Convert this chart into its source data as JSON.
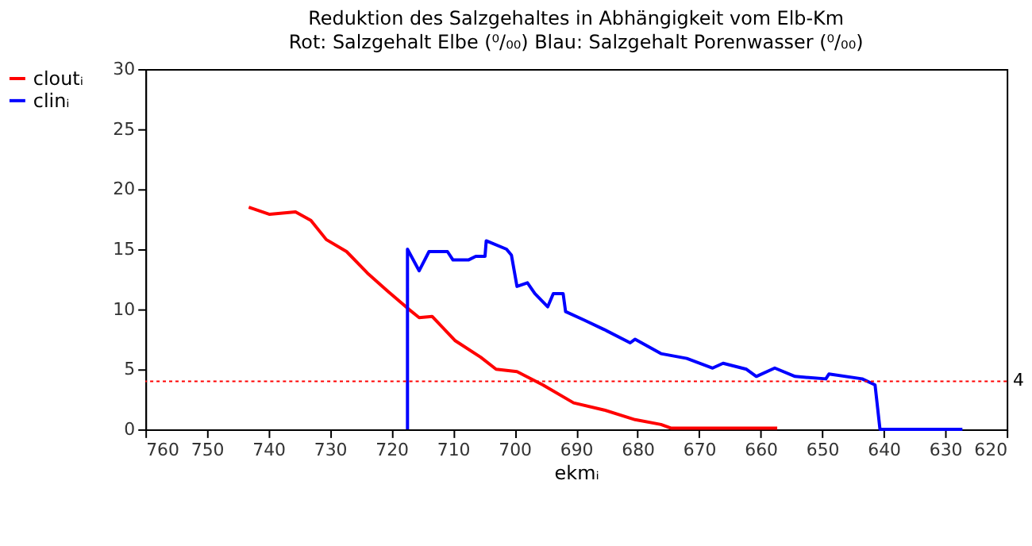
{
  "chart_data": {
    "type": "line",
    "title": "Reduktion des Salzgehaltes in Abhängigkeit vom Elb-Km",
    "subtitle": "Rot:  Salzgehalt Elbe (⁰/₀₀)    Blau: Salzgehalt Porenwasser (⁰/₀₀)",
    "xlabel": "ekmᵢ",
    "xlim": [
      760,
      620
    ],
    "xticks": [
      760,
      750,
      740,
      730,
      720,
      710,
      700,
      690,
      680,
      670,
      660,
      650,
      640,
      630,
      620
    ],
    "ylim": [
      0,
      30
    ],
    "yticks": [
      0,
      5,
      10,
      15,
      20,
      25,
      30
    ],
    "grid": false,
    "legend": "left",
    "line_style": "solid",
    "marker": "none",
    "ref_lines": [
      {
        "axis": "y",
        "value": 4,
        "label": "4",
        "color": "#ff0000",
        "line_style": "dotted"
      }
    ],
    "series": [
      {
        "name": "cloutᵢ",
        "color": "#ff0000",
        "x": [
          743.2,
          739.8,
          735.6,
          733.1,
          730.6,
          727.3,
          723.9,
          720.6,
          717.2,
          715.5,
          713.4,
          709.7,
          705.5,
          703,
          699.6,
          695.4,
          690.4,
          685.4,
          680.4,
          676.2,
          674.6,
          657.3
        ],
        "values": [
          18.5,
          17.9,
          18.1,
          17.4,
          15.8,
          14.8,
          13.0,
          11.5,
          10.0,
          9.3,
          9.4,
          7.4,
          6.0,
          5.0,
          4.8,
          3.7,
          2.2,
          1.6,
          0.8,
          0.4,
          0.1,
          0.1
        ]
      },
      {
        "name": "clinᵢ",
        "color": "#0000ff",
        "x": [
          717.4,
          717.4,
          715.5,
          713.9,
          710.9,
          710.0,
          707.5,
          706.3,
          704.8,
          704.6,
          701.3,
          700.5,
          699.6,
          697.9,
          696.7,
          694.6,
          693.7,
          692.1,
          691.7,
          688.7,
          685.4,
          681.2,
          680.4,
          676.2,
          672,
          667.8,
          666.1,
          662.3,
          660.7,
          657.7,
          654.4,
          649.4,
          648.9,
          643.5,
          641.4,
          640.6,
          627.2
        ],
        "values": [
          0,
          15.0,
          13.2,
          14.8,
          14.8,
          14.1,
          14.1,
          14.4,
          14.4,
          15.7,
          15.0,
          14.5,
          11.9,
          12.2,
          11.3,
          10.2,
          11.3,
          11.3,
          9.8,
          9.1,
          8.3,
          7.2,
          7.5,
          6.3,
          5.9,
          5.1,
          5.5,
          5.0,
          4.4,
          5.1,
          4.4,
          4.2,
          4.6,
          4.2,
          3.7,
          0,
          0
        ]
      }
    ]
  }
}
